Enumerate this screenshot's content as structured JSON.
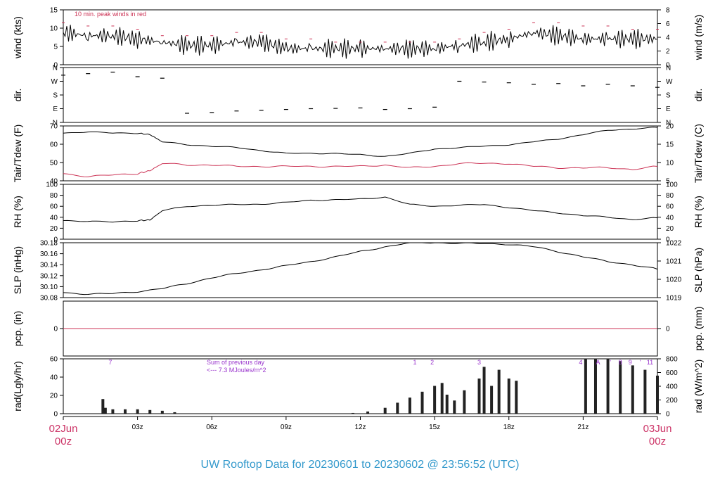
{
  "footer": "UW Rooftop Data for 20230601  to  20230602 @ 23:56:52  (UTC)",
  "x_axis": {
    "start_date": "02Jun",
    "start_hour": "00z",
    "end_date": "03Jun",
    "end_hour": "00z",
    "ticks": [
      "03z",
      "06z",
      "09z",
      "12z",
      "15z",
      "18z",
      "21z"
    ]
  },
  "colors": {
    "primary": "#000000",
    "secondary": "#cc3355",
    "note": "#9933cc",
    "footer": "#3399cc",
    "date": "#cc3366"
  },
  "chart_data": [
    {
      "id": "wind",
      "type": "line",
      "ylabel": "wind (kts)",
      "ylabel_right": "wind (m/s)",
      "ylim": [
        0,
        17
      ],
      "yticks": [
        "0",
        "5",
        "10",
        "15"
      ],
      "yticks_right": [
        "0",
        "2",
        "4",
        "6",
        "8"
      ],
      "note": "10 min. peak winds in red",
      "x_hours": [
        0,
        1,
        2,
        3,
        4,
        5,
        6,
        7,
        8,
        9,
        10,
        11,
        12,
        13,
        14,
        15,
        16,
        17,
        18,
        19,
        20,
        21,
        22,
        23,
        24
      ],
      "series": [
        {
          "role": "sustained",
          "values": [
            10,
            9,
            9,
            8,
            7,
            6,
            6,
            7,
            7,
            5,
            5,
            5,
            5,
            5,
            5,
            5,
            6,
            7,
            8,
            10,
            9,
            8,
            8,
            8,
            8
          ]
        },
        {
          "role": "peak",
          "values": [
            13,
            12,
            12,
            11,
            9,
            9,
            9,
            10,
            10,
            8,
            8,
            7,
            7,
            7,
            7,
            7,
            8,
            10,
            11,
            13,
            13,
            12,
            12,
            11,
            11
          ]
        }
      ]
    },
    {
      "id": "dir",
      "type": "scatter",
      "ylabel": "dir.",
      "ylabel_right": "dir.",
      "yticks": [
        "N",
        "E",
        "S",
        "W",
        "N"
      ],
      "yticks_right": [
        "N",
        "E",
        "S",
        "W",
        "N"
      ],
      "x_hours": [
        0,
        1,
        2,
        3,
        4,
        5,
        6,
        7,
        8,
        9,
        10,
        11,
        12,
        13,
        14,
        15,
        16,
        17,
        18,
        19,
        20,
        21,
        22,
        23,
        24
      ],
      "values_deg": [
        310,
        320,
        330,
        300,
        290,
        60,
        65,
        75,
        80,
        85,
        90,
        92,
        95,
        85,
        90,
        100,
        270,
        265,
        260,
        250,
        255,
        240,
        250,
        240,
        230
      ]
    },
    {
      "id": "temp",
      "type": "line",
      "ylabel": "Tair/Tdew (F)",
      "ylabel_right": "Tair/Tdew (C)",
      "ylim": [
        35,
        73
      ],
      "yticks": [
        "40",
        "50",
        "60",
        "70"
      ],
      "yticks_right": [
        "5",
        "10",
        "15",
        "20"
      ],
      "x_hours": [
        0,
        1,
        2,
        3,
        3.5,
        4,
        5,
        6,
        7,
        8,
        9,
        10,
        11,
        12,
        13,
        14,
        15,
        16,
        17,
        18,
        19,
        20,
        21,
        22,
        23,
        24
      ],
      "series": [
        {
          "role": "air",
          "values": [
            68,
            69,
            68,
            68,
            67,
            62,
            60,
            59,
            58,
            56,
            54,
            54,
            54,
            53,
            52,
            54,
            57,
            58,
            59,
            60,
            62,
            64,
            67,
            70,
            71,
            72
          ]
        },
        {
          "role": "dew",
          "values": [
            40,
            38,
            39,
            40,
            42,
            47,
            46,
            46,
            45,
            45,
            45,
            45,
            45,
            45,
            46,
            44,
            45,
            47,
            47,
            47,
            45,
            44,
            44,
            44,
            43,
            45
          ]
        }
      ]
    },
    {
      "id": "rh",
      "type": "line",
      "ylabel": "RH (%)",
      "ylabel_right": "RH (%)",
      "ylim": [
        0,
        100
      ],
      "yticks": [
        "0",
        "20",
        "40",
        "60",
        "80",
        "100"
      ],
      "yticks_right": [
        "0",
        "20",
        "40",
        "60",
        "80",
        "100"
      ],
      "x_hours": [
        0,
        1,
        2,
        3,
        3.5,
        4,
        5,
        6,
        7,
        8,
        9,
        10,
        11,
        12,
        13,
        14,
        15,
        16,
        17,
        18,
        19,
        20,
        21,
        22,
        23,
        24
      ],
      "values": [
        34,
        33,
        31,
        34,
        35,
        52,
        60,
        62,
        63,
        64,
        67,
        71,
        72,
        73,
        77,
        63,
        60,
        62,
        63,
        58,
        52,
        48,
        43,
        40,
        36,
        39
      ]
    },
    {
      "id": "slp",
      "type": "line",
      "ylabel": "SLP (inHg)",
      "ylabel_right": "SLP (hPa)",
      "ylim": [
        30.08,
        30.19
      ],
      "yticks": [
        "30.08",
        "30.10",
        "30.12",
        "30.14",
        "30.16",
        "30.18"
      ],
      "yticks_right": [
        "1019",
        "1020",
        "1021",
        "1022"
      ],
      "x_hours": [
        0,
        1,
        2,
        3,
        4,
        5,
        6,
        7,
        8,
        9,
        10,
        11,
        12,
        13,
        14,
        15,
        16,
        17,
        18,
        19,
        20,
        21,
        22,
        23,
        24
      ],
      "values": [
        30.09,
        30.087,
        30.088,
        30.092,
        30.098,
        30.108,
        30.12,
        30.128,
        30.136,
        30.144,
        30.152,
        30.162,
        30.172,
        30.182,
        30.19,
        30.19,
        30.189,
        30.188,
        30.187,
        30.182,
        30.172,
        30.162,
        30.152,
        30.146,
        30.137
      ]
    },
    {
      "id": "pcp",
      "type": "line",
      "ylabel": "pcp. (in)",
      "ylabel_right": "pcp. (mm)",
      "yticks": [
        "0"
      ],
      "yticks_right": [
        "0"
      ],
      "x_hours": [
        0,
        24
      ],
      "values": [
        0,
        0
      ]
    },
    {
      "id": "rad",
      "type": "bar",
      "ylabel": "rad(Lgly/hr)",
      "ylabel_right": "rad (W/m^2)",
      "ylim": [
        0,
        75
      ],
      "yticks": [
        "0",
        "20",
        "40",
        "60"
      ],
      "yticks_right": [
        "0",
        "200",
        "400",
        "600",
        "800"
      ],
      "sum_note": [
        "Sum of previous day",
        "<--- 7.3 MJoules/m^2"
      ],
      "hour_labels": [
        {
          "hour": 1.9,
          "text": "7"
        },
        {
          "hour": 14.2,
          "text": "1"
        },
        {
          "hour": 14.9,
          "text": "2"
        },
        {
          "hour": 16.8,
          "text": "3"
        },
        {
          "hour": 20.9,
          "text": "4"
        },
        {
          "hour": 21.6,
          "text": "A"
        },
        {
          "hour": 22.1,
          "text": "'"
        },
        {
          "hour": 22.5,
          "text": "8"
        },
        {
          "hour": 22.9,
          "text": "9"
        },
        {
          "hour": 23.3,
          "text": "'"
        },
        {
          "hour": 23.7,
          "text": "11"
        }
      ],
      "x_hours": [
        1.6,
        1.7,
        2,
        2.5,
        3,
        3.5,
        4,
        4.5,
        11.7,
        12.3,
        13,
        13.5,
        14,
        14.5,
        15,
        15.3,
        15.5,
        15.8,
        16.2,
        16.8,
        17,
        17.3,
        17.6,
        18,
        18.3,
        21.1,
        21.5,
        22,
        22.5,
        23,
        23.5,
        24
      ],
      "values": [
        20,
        8,
        6,
        6,
        6,
        5,
        4,
        2,
        1,
        3,
        8,
        15,
        22,
        30,
        38,
        42,
        26,
        18,
        32,
        48,
        64,
        38,
        60,
        48,
        45,
        80,
        79,
        77,
        72,
        66,
        60,
        52
      ]
    }
  ]
}
